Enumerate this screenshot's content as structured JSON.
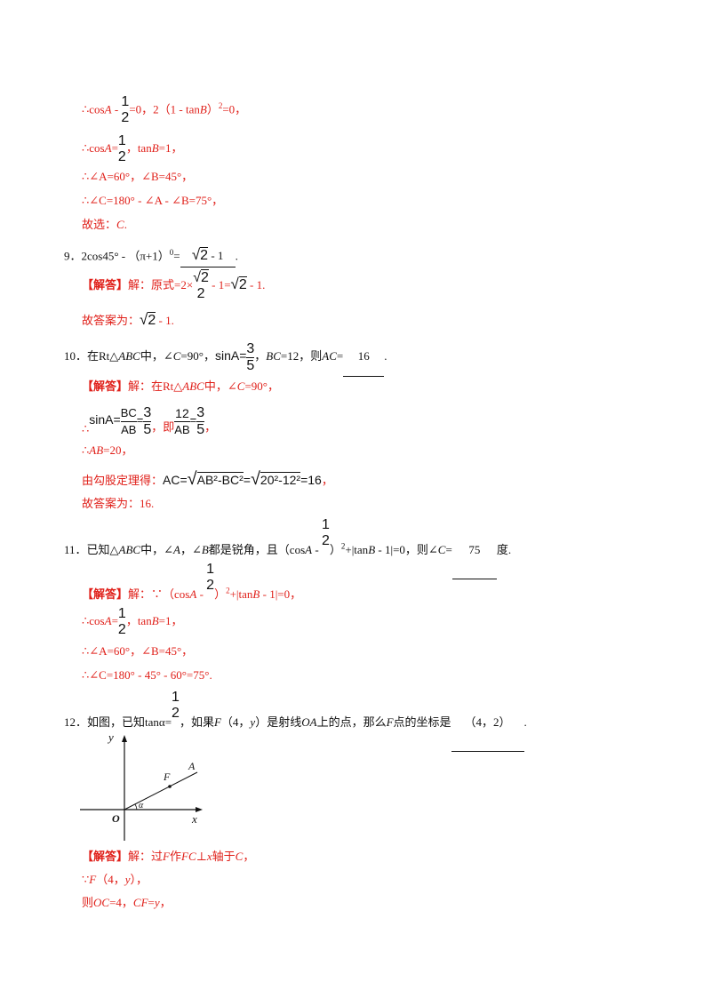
{
  "q8_tail": {
    "l1_a": "∴cos",
    "l1_b": "A",
    "l1_c": " - ",
    "l1_frac_num": "1",
    "l1_frac_den": "2",
    "l1_d": "=0，2（1 - tan",
    "l1_e": "B",
    "l1_f": "）",
    "l1_sup": "2",
    "l1_g": "=0，",
    "l2_a": "∴cos",
    "l2_b": "A",
    "l2_c": "=",
    "l2_frac_num": "1",
    "l2_frac_den": "2",
    "l2_d": "，tan",
    "l2_e": "B",
    "l2_f": "=1，",
    "l3": "∴∠A=60°，∠B=45°，",
    "l4": "∴∠C=180° - ∠A - ∠B=75°，",
    "l5_a": "故选：",
    "l5_b": "C",
    "l5_c": "."
  },
  "q9": {
    "stem_a": "9．2cos45° - （π+1）",
    "stem_sup": "0",
    "stem_b": "=",
    "answer_rad": "2",
    "answer_tail": " - 1",
    "stem_c": ".",
    "sol_tag": "【解答】",
    "sol_a": "解：原式=2×",
    "sol_frac_rad": "2",
    "sol_frac_den": "2",
    "sol_b": " - 1=",
    "sol_rad": "2",
    "sol_c": " - 1.",
    "ans_a": "故答案为：",
    "ans_rad": "2",
    "ans_b": " - 1."
  },
  "q10": {
    "stem_a": "10．在Rt△",
    "stem_b": "ABC",
    "stem_c": "中，∠",
    "stem_d": "C",
    "stem_e": "=90°，",
    "stem_sin": "sinA=",
    "stem_frac_num": "3",
    "stem_frac_den": "5",
    "stem_f": "，",
    "stem_g": "BC",
    "stem_h": "=12，则",
    "stem_i": "AC",
    "stem_j": "=",
    "answer": "16",
    "stem_k": ".",
    "sol_tag": "【解答】",
    "sol_a": "解：在Rt△",
    "sol_b": "ABC",
    "sol_c": "中，∠",
    "sol_d": "C",
    "sol_e": "=90°，",
    "l2_therefore": "∴",
    "l2_sin": "sinA=",
    "l2_f1_num": "BC",
    "l2_f1_den": "AB",
    "l2_eq": "=",
    "l2_f2_num": "3",
    "l2_f2_den": "5",
    "l2_mid": "，即",
    "l2_f3_num": "12",
    "l2_f3_den": "AB",
    "l2_eq2": "=",
    "l2_f4_num": "3",
    "l2_f4_den": "5",
    "l2_end": "，",
    "l3_a": "∴",
    "l3_b": "AB",
    "l3_c": "=20，",
    "l4_a": "由勾股定理得：",
    "l4_b": "AC=",
    "l4_rad1": "AB²-BC²",
    "l4_c": "=",
    "l4_rad2": "20²-12²",
    "l4_d": "=16",
    "l4_e": "，",
    "l5": "故答案为：16."
  },
  "q11": {
    "stem_a": "11．已知△",
    "stem_b": "ABC",
    "stem_c": "中，∠",
    "stem_d": "A",
    "stem_e": "，∠",
    "stem_f": "B",
    "stem_g": "都是锐角，且（cos",
    "stem_h": "A",
    "stem_i": " - ",
    "stem_frac_num": "1",
    "stem_frac_den": "2",
    "stem_j": "）",
    "stem_sup": "2",
    "stem_k": "+|tan",
    "stem_l": "B",
    "stem_m": " - 1|=0，则∠",
    "stem_n": "C",
    "stem_o": "=",
    "answer": "75",
    "stem_p": "度.",
    "sol_tag": "【解答】",
    "sol_a": "解：∵（cos",
    "sol_b": "A",
    "sol_c": " - ",
    "sol_frac_num": "1",
    "sol_frac_den": "2",
    "sol_d": "）",
    "sol_sup": "2",
    "sol_e": "+|tan",
    "sol_f": "B",
    "sol_g": " - 1|=0，",
    "l2_a": "∴cos",
    "l2_b": "A",
    "l2_c": "=",
    "l2_frac_num": "1",
    "l2_frac_den": "2",
    "l2_d": "，tan",
    "l2_e": "B",
    "l2_f": "=1，",
    "l3": "∴∠A=60°，∠B=45°，",
    "l4": "∴∠C=180° - 45° - 60°=75°."
  },
  "q12": {
    "stem_a": "12．如图，已知tanα=",
    "stem_frac_num": "1",
    "stem_frac_den": "2",
    "stem_b": "，如果",
    "stem_c": "F",
    "stem_d": "（4，",
    "stem_e": "y",
    "stem_f": "）是射线",
    "stem_g": "OA",
    "stem_h": "上的点，那么",
    "stem_i": "F",
    "stem_j": "点的坐标是",
    "answer": "（4，2）",
    "stem_k": ".",
    "fig_y": "y",
    "fig_x": "x",
    "fig_o": "O",
    "fig_f": "F",
    "fig_a": "A",
    "fig_alpha": "α",
    "sol_tag": "【解答】",
    "sol_a": "解：过",
    "sol_b": "F",
    "sol_c": "作",
    "sol_d": "FC",
    "sol_e": "⊥",
    "sol_f": "x",
    "sol_g": "轴于",
    "sol_h": "C",
    "sol_i": "，",
    "l2_a": "∵",
    "l2_b": "F",
    "l2_c": "（4，",
    "l2_d": "y",
    "l2_e": "），",
    "l3_a": "则",
    "l3_b": "OC",
    "l3_c": "=4，",
    "l3_d": "CF",
    "l3_e": "=",
    "l3_f": "y",
    "l3_g": "，"
  }
}
